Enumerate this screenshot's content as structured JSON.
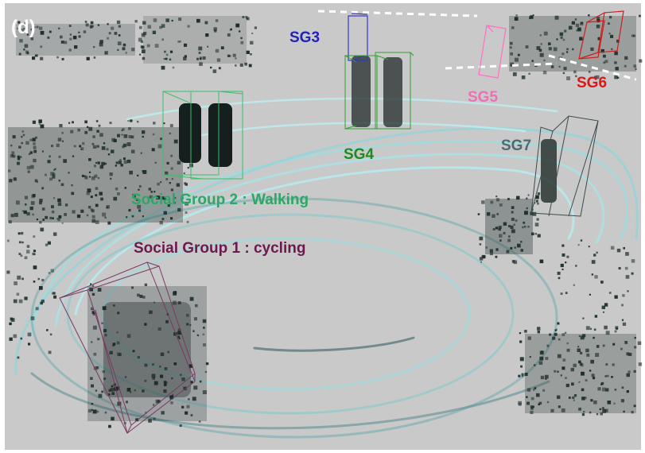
{
  "panel_tag": "(d)",
  "labels": {
    "sg1": "Social Group 1 : cycling",
    "sg2": "Social Group 2 : Walking",
    "sg3": "SG3",
    "sg4": "SG4",
    "sg5": "SG5",
    "sg6": "SG6",
    "sg7": "SG7"
  },
  "colors": {
    "background": "#c9c9c9",
    "ring": "#8fd4d8",
    "points_dark": "#1c2d2a",
    "sg1": "#6b1a4e",
    "sg2": "#2aa866",
    "sg3": "#2222bb",
    "sg4": "#1f8a1f",
    "sg5": "#ee6fb8",
    "sg6": "#e01515",
    "sg7": "#4f6a6e",
    "box_sg1": "#7a3a62",
    "box_sg2": "#3cbf6a",
    "box_sg3": "#3535c8",
    "box_sg4": "#2ea02e",
    "box_sg5": "#ff70c4",
    "box_sg6": "#cc1f1f",
    "box_sg7": "#3d4a4c"
  }
}
